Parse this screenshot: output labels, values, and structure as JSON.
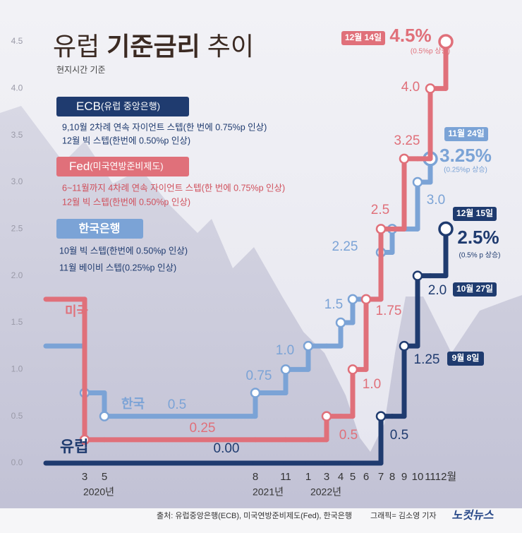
{
  "title": [
    "유럽",
    "기준금리",
    "추이"
  ],
  "subtitle": "현지시간 기준",
  "boxes": [
    {
      "name": "ECB",
      "paren": "(유럽 중앙은행)",
      "lines": [
        "9,10월 2차례 연속 자이언트 스텝(한 번에 0.75%p 인상)",
        "12월 빅 스텝(한번에 0.50%p 인상)"
      ]
    },
    {
      "name": "Fed",
      "paren": "(미국연방준비제도)",
      "lines": [
        "6~11월까지 4차례 연속 자이언트 스텝(한 번에 0.75%p 인상)",
        "12월 빅 스텝(한번에 0.50%p 인상)"
      ]
    },
    {
      "name": "한국은행",
      "lines": [
        "10월 빅 스텝(한번에 0.50%p 인상)",
        "11월 베이비 스텝(0.25%p 인상)"
      ]
    }
  ],
  "chart_data": {
    "type": "step",
    "categories": [
      null,
      "3",
      "5",
      "8",
      "11",
      "1",
      "3",
      "4",
      "5",
      "6",
      "7",
      "8",
      "9",
      "10",
      "11",
      "12월"
    ],
    "year_labels": [
      "2020년",
      "2021년",
      "2022년"
    ],
    "ylim": [
      0,
      4.5
    ],
    "yticks": [
      {
        "value": 0,
        "label": "0.0"
      },
      0.5,
      {
        "value": 1,
        "label": "1.0"
      },
      1.5,
      {
        "value": 2,
        "label": "2.0"
      },
      2.5,
      {
        "value": 3,
        "label": "3.0"
      },
      3.5,
      {
        "value": 4,
        "label": "4.0"
      },
      4.5
    ],
    "grid": false,
    "series": [
      {
        "name": "한국",
        "color": "#7ba3d6",
        "values": [
          1.25,
          0.75,
          0.5,
          0.75,
          1.0,
          1.25,
          1.25,
          1.5,
          1.75,
          1.75,
          2.25,
          2.5,
          2.5,
          3.0,
          3.25,
          null
        ],
        "value_labels": [
          null,
          null,
          "0.5",
          "0.75",
          "1.0",
          null,
          null,
          "1.5",
          null,
          null,
          "2.25",
          null,
          null,
          "3.0",
          "3.25%",
          null
        ],
        "dates": [
          null,
          null,
          null,
          null,
          null,
          null,
          null,
          null,
          null,
          null,
          null,
          null,
          null,
          null,
          "11월 24일",
          null
        ],
        "notes": [
          null,
          null,
          null,
          null,
          null,
          null,
          null,
          null,
          null,
          null,
          null,
          null,
          null,
          null,
          "(0.25%p 상승)",
          null
        ]
      },
      {
        "name": "미국",
        "color": "#e0707a",
        "values": [
          1.75,
          0.25,
          0.25,
          0.25,
          0.25,
          0.25,
          0.5,
          0.5,
          1.0,
          1.75,
          2.5,
          2.5,
          3.25,
          3.25,
          4.0,
          4.5
        ],
        "value_labels": [
          null,
          "0.25",
          null,
          null,
          null,
          null,
          "0.5",
          null,
          "1.0",
          "1.75",
          "2.5",
          null,
          "3.25",
          null,
          "4.0",
          "4.5%"
        ],
        "dates": [
          null,
          null,
          null,
          null,
          null,
          null,
          null,
          null,
          null,
          null,
          null,
          null,
          null,
          null,
          null,
          "12월 14일"
        ],
        "notes": [
          null,
          null,
          null,
          null,
          null,
          null,
          null,
          null,
          null,
          null,
          null,
          null,
          null,
          null,
          null,
          "(0.5%p 상승)"
        ]
      },
      {
        "name": "유럽",
        "color": "#1f3b6f",
        "values": [
          0,
          0,
          0,
          0,
          0,
          0,
          0,
          0,
          0,
          0,
          0.5,
          0.5,
          1.25,
          2.0,
          2.0,
          2.5
        ],
        "value_labels": [
          "0.00",
          null,
          null,
          null,
          null,
          null,
          null,
          null,
          null,
          null,
          "0.5",
          null,
          "1.25",
          "2.0",
          null,
          "2.5%"
        ],
        "dates": [
          null,
          null,
          null,
          null,
          null,
          null,
          null,
          null,
          null,
          null,
          null,
          null,
          "9월 8일",
          "10월 27일",
          null,
          "12월 15일"
        ],
        "notes": [
          null,
          null,
          null,
          null,
          null,
          null,
          null,
          null,
          null,
          null,
          null,
          null,
          null,
          null,
          null,
          "(0.5% p 상승)"
        ]
      }
    ]
  },
  "source": "출처: 유럽중앙은행(ECB), 미국연방준비제도(Fed), 한국은행",
  "graphic": "그래픽= 김소영 기자",
  "logo": "노컷뉴스"
}
